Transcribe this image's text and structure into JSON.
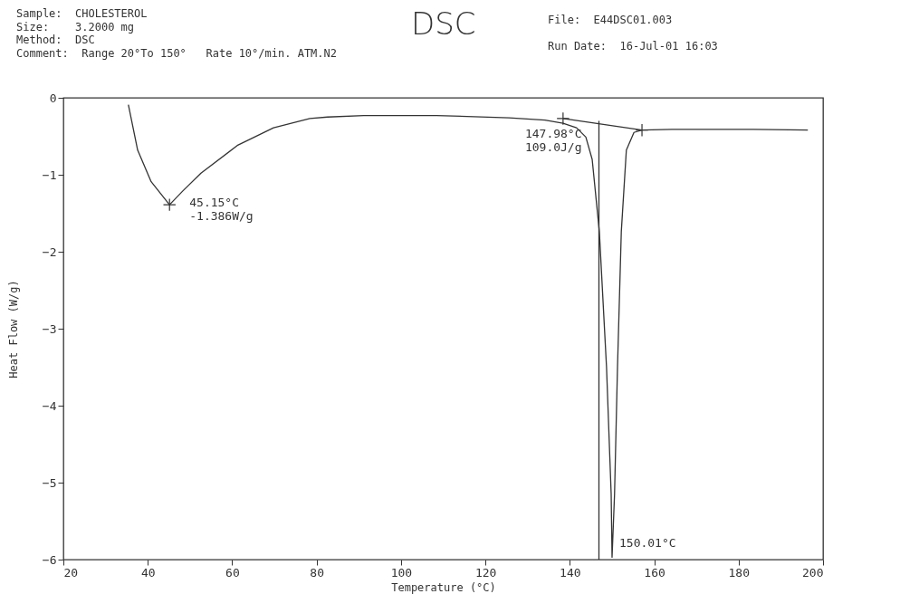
{
  "chart_data": {
    "type": "line",
    "title": "DSC",
    "xlabel": "Temperature (°C)",
    "ylabel": "Heat Flow (W/g)",
    "xlim": [
      20,
      200
    ],
    "xticks": [
      20,
      40,
      60,
      80,
      100,
      120,
      140,
      160,
      180,
      200
    ],
    "ylim": [
      -6,
      0
    ],
    "yticks": [
      -6,
      -5,
      -4,
      -3,
      -2,
      -1,
      0
    ],
    "grid": false,
    "line_style": "solid",
    "series": [
      {
        "type": "line",
        "color": "#333333",
        "x": [
          35.4,
          37.6,
          40.8,
          45.15,
          48.3,
          52.6,
          61.2,
          69.8,
          78.4,
          82.6,
          91.2,
          108.4,
          125.6,
          134.1,
          138.4,
          141.6,
          143.8,
          145.3,
          147.0,
          148.7,
          149.8,
          150.01,
          150.6,
          151.3,
          152.2,
          153.4,
          155.2,
          157.1,
          164.2,
          183.5,
          196.4
        ],
        "values": [
          -0.09,
          -0.68,
          -1.09,
          -1.39,
          -1.21,
          -0.98,
          -0.62,
          -0.39,
          -0.27,
          -0.25,
          -0.23,
          -0.23,
          -0.26,
          -0.29,
          -0.33,
          -0.39,
          -0.51,
          -0.8,
          -1.74,
          -3.5,
          -5.15,
          -5.97,
          -5.15,
          -3.5,
          -1.74,
          -0.68,
          -0.45,
          -0.42,
          -0.41,
          -0.41,
          -0.42
        ]
      },
      {
        "type": "line",
        "color": "#333333",
        "x": [
          138.4,
          157.1
        ],
        "values": [
          -0.27,
          -0.42
        ]
      },
      {
        "type": "line",
        "color": "#333333",
        "x": [
          146.9,
          146.9
        ],
        "values": [
          -0.3,
          -6
        ]
      },
      {
        "type": "scatter",
        "marker": "cross",
        "color": "#333333",
        "x": [
          45.15,
          138.4,
          157.1
        ],
        "values": [
          -1.39,
          -0.27,
          -0.42
        ]
      }
    ],
    "annotations": [
      "Sample:  CHOLESTEROL",
      "Size:    3.2000 mg",
      "Method:  DSC",
      "Comment:  Range 20°To 150°   Rate 10°/min. ATM.N2",
      "File:  E44DSC01.003",
      "Run Date:  16-Jul-01 16:03",
      {
        "text": "45.15°C\n-1.386W/g",
        "x": 45.15,
        "y": -1.386
      },
      {
        "text": "147.98°C\n109.0J/g",
        "x": 147.98,
        "y": -0.3
      },
      {
        "text": "150.01°C",
        "x": 150.01,
        "y": -6
      }
    ]
  }
}
